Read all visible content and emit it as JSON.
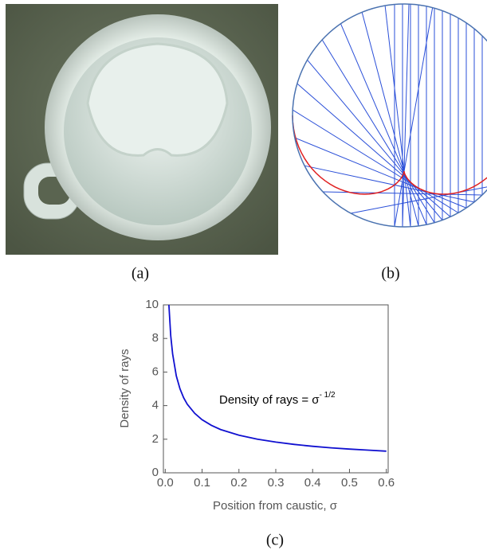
{
  "panels": {
    "a": {
      "label": "(a)"
    },
    "b": {
      "label": "(b)"
    }
  },
  "chart_data": {
    "type": "line",
    "caption": "(c)",
    "xlabel": "Position from caustic, σ",
    "ylabel": "Density of rays",
    "annotation": {
      "text": "Density of rays = σ",
      "exponent": "- 1/2"
    },
    "color": "#1010d0",
    "x": [
      0.01,
      0.015,
      0.02,
      0.03,
      0.04,
      0.05,
      0.06,
      0.08,
      0.1,
      0.125,
      0.15,
      0.2,
      0.25,
      0.3,
      0.35,
      0.4,
      0.45,
      0.5,
      0.55,
      0.6
    ],
    "values": [
      10,
      8.16,
      7.07,
      5.77,
      5,
      4.47,
      4.08,
      3.54,
      3.16,
      2.83,
      2.58,
      2.24,
      2,
      1.83,
      1.69,
      1.58,
      1.49,
      1.41,
      1.35,
      1.29
    ],
    "xlim": [
      -0.005,
      0.605
    ],
    "ylim": [
      0,
      10
    ],
    "xticks": [
      {
        "value": 0,
        "label": "0.0"
      },
      0.1,
      0.2,
      0.3,
      0.4,
      0.5,
      0.6
    ],
    "yticks": [
      0,
      2,
      4,
      6,
      8,
      10
    ]
  }
}
